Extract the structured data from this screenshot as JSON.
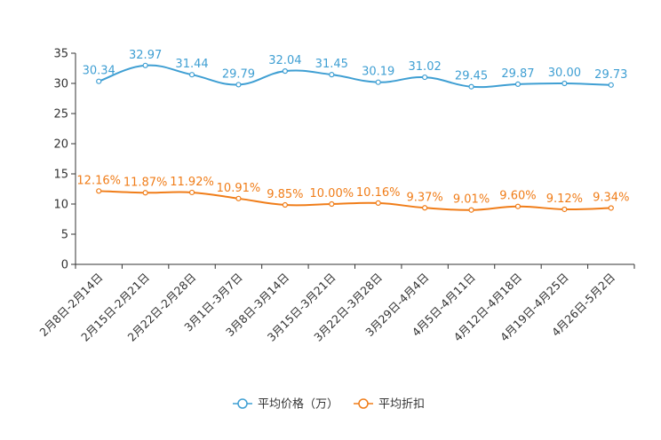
{
  "chart_data": {
    "type": "line",
    "title": "",
    "xlabel": "",
    "ylabel": "",
    "ylim": [
      0,
      35
    ],
    "yticks": [
      0,
      5,
      10,
      15,
      20,
      25,
      30,
      35
    ],
    "grid": false,
    "legend_position": "bottom",
    "categories": [
      "2月8日-2月14日",
      "2月15日-2月21日",
      "2月22日-2月28日",
      "3月1日-3月7日",
      "3月8日-3月14日",
      "3月15日-3月21日",
      "3月22日-3月28日",
      "3月29日-4月4日",
      "4月5日-4月11日",
      "4月12日-4月18日",
      "4月19日-4月25日",
      "4月26日-5月2日"
    ],
    "series": [
      {
        "name": "平均价格（万）",
        "color": "#3f9fd3",
        "values": [
          30.34,
          32.97,
          31.44,
          29.79,
          32.04,
          31.45,
          30.19,
          31.02,
          29.45,
          29.87,
          30.0,
          29.73
        ],
        "labels": [
          "30.34",
          "32.97",
          "31.44",
          "29.79",
          "32.04",
          "31.45",
          "30.19",
          "31.02",
          "29.45",
          "29.87",
          "30.00",
          "29.73"
        ]
      },
      {
        "name": "平均折扣",
        "color": "#f07d19",
        "values": [
          12.16,
          11.87,
          11.92,
          10.91,
          9.85,
          10.0,
          10.16,
          9.37,
          9.01,
          9.6,
          9.12,
          9.34
        ],
        "labels": [
          "12.16%",
          "11.87%",
          "11.92%",
          "10.91%",
          "9.85%",
          "10.00%",
          "10.16%",
          "9.37%",
          "9.01%",
          "9.60%",
          "9.12%",
          "9.34%"
        ]
      }
    ]
  }
}
